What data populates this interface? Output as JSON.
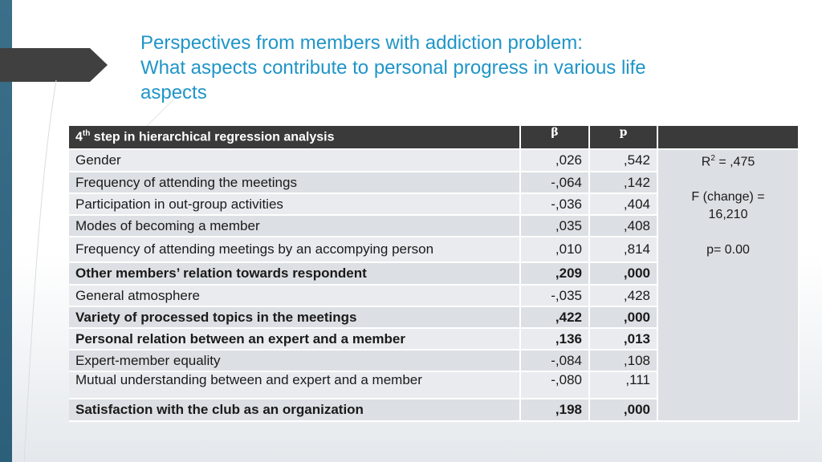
{
  "slide": {
    "title_lines": [
      "Perspectives from members with addiction problem:",
      "What aspects contribute to personal progress in various life",
      "aspects"
    ]
  },
  "table": {
    "header": {
      "label_sup": "th",
      "label_prefix": "4",
      "label_rest": " step in hierarchical regression analysis",
      "beta": "β",
      "p": "p",
      "stats": ""
    },
    "rows": [
      {
        "label": "Gender",
        "beta": ",026",
        "p": ",542",
        "bold": false
      },
      {
        "label": "Frequency of attending the meetings",
        "beta": "-,064",
        "p": ",142",
        "bold": false
      },
      {
        "label": "Participation in out-group activities",
        "beta": "-,036",
        "p": ",404",
        "bold": false
      },
      {
        "label": "Modes of becoming a member",
        "beta": ",035",
        "p": ",408",
        "bold": false
      },
      {
        "label": "Frequency of attending meetings by an accompying person",
        "beta": ",010",
        "p": ",814",
        "bold": false
      },
      {
        "label": "Other members’ relation towards respondent",
        "beta": ",209",
        "p": ",000",
        "bold": true
      },
      {
        "label": "General atmosphere",
        "beta": "-,035",
        "p": ",428",
        "bold": false
      },
      {
        "label": "Variety of processed topics in the meetings",
        "beta": ",422",
        "p": ",000",
        "bold": true
      },
      {
        "label": "Personal relation between an expert and a member",
        "beta": ",136",
        "p": ",013",
        "bold": true
      },
      {
        "label": "Expert-member equality",
        "beta": "-,084",
        "p": ",108",
        "bold": false
      },
      {
        "label": "Mutual understanding between and expert and a member",
        "beta": "-,080",
        "p": ",111",
        "bold": false
      },
      {
        "label": "Satisfaction with the club as an organization",
        "beta": ",198",
        "p": ",000",
        "bold": true
      }
    ],
    "stats": {
      "r2_prefix": "R",
      "r2_sup": "2",
      "r2_value": " = ,475",
      "f_line1": "F (change) =",
      "f_line2": "16,210",
      "p_value": "p= 0.00"
    }
  }
}
